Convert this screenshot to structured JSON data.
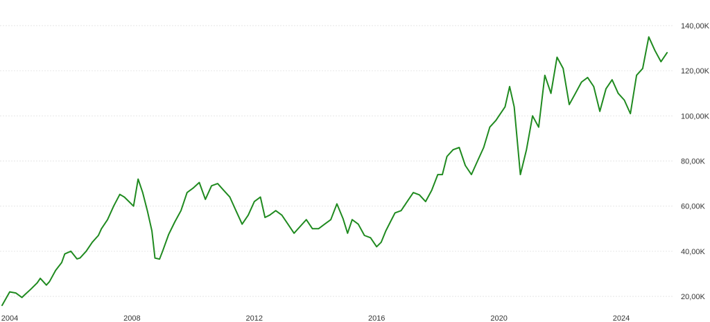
{
  "chart_data": {
    "type": "line",
    "title": "",
    "xlabel": "",
    "ylabel": "",
    "x_range": [
      2003.75,
      2025.55
    ],
    "ylim": [
      15000,
      150000
    ],
    "grid": true,
    "legend": "none",
    "color": "#1f8a1f",
    "x_ticks": [
      {
        "value": 2004,
        "label": "2004"
      },
      {
        "value": 2008,
        "label": "2008"
      },
      {
        "value": 2012,
        "label": "2012"
      },
      {
        "value": 2016,
        "label": "2016"
      },
      {
        "value": 2020,
        "label": "2020"
      },
      {
        "value": 2024,
        "label": "2024"
      }
    ],
    "y_ticks": [
      {
        "value": 20000,
        "label": "20,00K"
      },
      {
        "value": 40000,
        "label": "40,00K"
      },
      {
        "value": 60000,
        "label": "60,00K"
      },
      {
        "value": 80000,
        "label": "80,00K"
      },
      {
        "value": 100000,
        "label": "100,00K"
      },
      {
        "value": 120000,
        "label": "120,00K"
      },
      {
        "value": 140000,
        "label": "140,00K"
      }
    ],
    "series": [
      {
        "x": [
          2003.75,
          2004.0,
          2004.2,
          2004.4,
          2004.5,
          2004.7,
          2004.9,
          2005.0,
          2005.2,
          2005.3,
          2005.5,
          2005.7,
          2005.8,
          2006.0,
          2006.2,
          2006.3,
          2006.5,
          2006.7,
          2006.9,
          2007.0,
          2007.2,
          2007.4,
          2007.6,
          2007.75,
          2007.9,
          2008.05,
          2008.2,
          2008.35,
          2008.5,
          2008.65,
          2008.75,
          2008.9,
          2009.0,
          2009.2,
          2009.4,
          2009.6,
          2009.8,
          2010.0,
          2010.2,
          2010.4,
          2010.6,
          2010.8,
          2011.0,
          2011.2,
          2011.4,
          2011.6,
          2011.8,
          2012.0,
          2012.2,
          2012.35,
          2012.5,
          2012.7,
          2012.9,
          2013.1,
          2013.3,
          2013.5,
          2013.7,
          2013.9,
          2014.1,
          2014.3,
          2014.5,
          2014.7,
          2014.9,
          2015.05,
          2015.2,
          2015.4,
          2015.6,
          2015.8,
          2016.0,
          2016.15,
          2016.3,
          2016.45,
          2016.6,
          2016.8,
          2017.0,
          2017.2,
          2017.4,
          2017.6,
          2017.8,
          2018.0,
          2018.15,
          2018.3,
          2018.5,
          2018.7,
          2018.9,
          2019.1,
          2019.3,
          2019.5,
          2019.7,
          2019.9,
          2020.0,
          2020.2,
          2020.35,
          2020.5,
          2020.7,
          2020.9,
          2021.1,
          2021.3,
          2021.5,
          2021.7,
          2021.9,
          2022.1,
          2022.3,
          2022.5,
          2022.7,
          2022.9,
          2023.1,
          2023.3,
          2023.5,
          2023.7,
          2023.9,
          2024.1,
          2024.3,
          2024.5,
          2024.7,
          2024.9,
          2025.1,
          2025.3,
          2025.5
        ],
        "y": [
          16000,
          22000,
          21500,
          19500,
          20800,
          23300,
          26000,
          28000,
          25000,
          26500,
          31500,
          35000,
          38800,
          40000,
          36600,
          37000,
          40000,
          44000,
          47000,
          50000,
          54000,
          60000,
          65200,
          64000,
          62000,
          60000,
          72000,
          66000,
          58000,
          49000,
          37000,
          36500,
          40000,
          47500,
          53000,
          58000,
          66000,
          68000,
          70500,
          63000,
          69000,
          70000,
          67000,
          64000,
          58000,
          52000,
          56000,
          62000,
          64000,
          55000,
          56000,
          58000,
          56000,
          52000,
          48000,
          51000,
          54000,
          50000,
          50000,
          52000,
          54000,
          61000,
          54500,
          48000,
          54000,
          52000,
          47000,
          46000,
          42000,
          44000,
          49000,
          53000,
          57000,
          58000,
          62000,
          66000,
          65000,
          62000,
          67000,
          74000,
          74000,
          82000,
          85000,
          86000,
          78000,
          74000,
          80000,
          86000,
          95000,
          98000,
          100000,
          104000,
          113000,
          104000,
          74000,
          85000,
          100000,
          95000,
          118000,
          110000,
          126000,
          121000,
          105000,
          110000,
          115000,
          117000,
          113000,
          102000,
          112000,
          116000,
          110000,
          107000,
          101000,
          118000,
          121000,
          135000,
          129000,
          124000,
          128000
        ]
      }
    ]
  }
}
